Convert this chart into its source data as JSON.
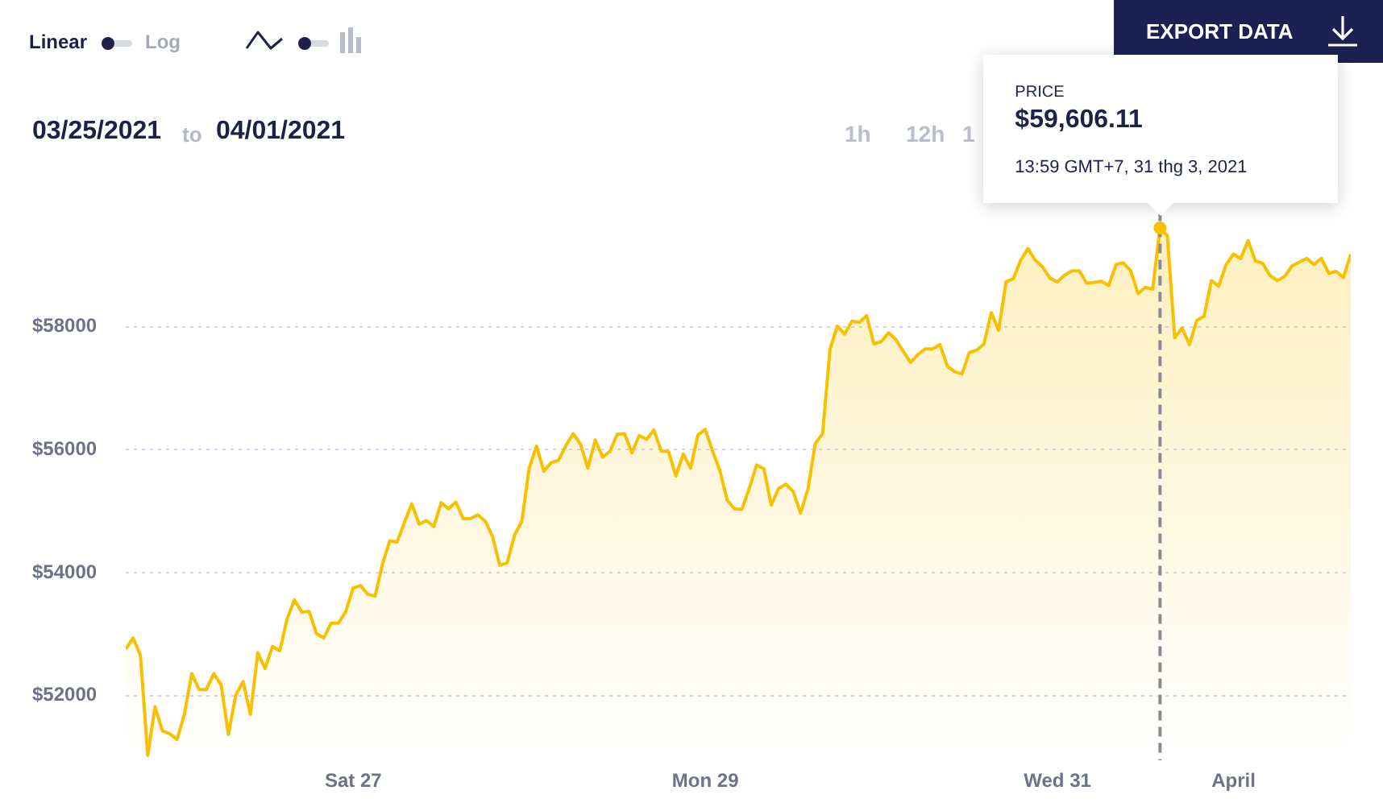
{
  "chart_data": {
    "type": "area",
    "x": [
      "2021-03-25T16:59",
      "2021-03-25T17:59",
      "2021-03-25T18:59",
      "2021-03-25T19:59",
      "2021-03-25T20:59",
      "2021-03-25T21:59",
      "2021-03-25T22:59",
      "2021-03-25T23:59",
      "2021-03-26T00:59",
      "2021-03-26T01:59",
      "2021-03-26T02:59",
      "2021-03-26T03:59",
      "2021-03-26T04:59",
      "2021-03-26T05:59",
      "2021-03-26T06:59",
      "2021-03-26T07:59",
      "2021-03-26T08:59",
      "2021-03-26T09:59",
      "2021-03-26T10:59",
      "2021-03-26T11:59",
      "2021-03-26T12:59",
      "2021-03-26T13:59",
      "2021-03-26T14:59",
      "2021-03-26T15:59",
      "2021-03-26T16:59",
      "2021-03-26T17:59",
      "2021-03-26T18:59",
      "2021-03-26T19:59",
      "2021-03-26T20:59",
      "2021-03-26T21:59",
      "2021-03-26T22:59",
      "2021-03-26T23:59",
      "2021-03-27T00:59",
      "2021-03-27T01:59",
      "2021-03-27T02:59",
      "2021-03-27T03:59",
      "2021-03-27T04:59",
      "2021-03-27T05:59",
      "2021-03-27T06:59",
      "2021-03-27T07:59",
      "2021-03-27T08:59",
      "2021-03-27T09:59",
      "2021-03-27T10:59",
      "2021-03-27T11:59",
      "2021-03-27T12:59",
      "2021-03-27T13:59",
      "2021-03-27T14:59",
      "2021-03-27T15:59",
      "2021-03-27T16:59",
      "2021-03-27T17:59",
      "2021-03-27T18:59",
      "2021-03-27T19:59",
      "2021-03-27T20:59",
      "2021-03-27T21:59",
      "2021-03-27T22:59",
      "2021-03-27T23:59",
      "2021-03-28T00:59",
      "2021-03-28T01:59",
      "2021-03-28T02:59",
      "2021-03-28T03:59",
      "2021-03-28T04:59",
      "2021-03-28T05:59",
      "2021-03-28T06:59",
      "2021-03-28T07:59",
      "2021-03-28T08:59",
      "2021-03-28T09:59",
      "2021-03-28T10:59",
      "2021-03-28T11:59",
      "2021-03-28T12:59",
      "2021-03-28T13:59",
      "2021-03-28T14:59",
      "2021-03-28T15:59",
      "2021-03-28T16:59",
      "2021-03-28T17:59",
      "2021-03-28T18:59",
      "2021-03-28T19:59",
      "2021-03-28T20:59",
      "2021-03-28T21:59",
      "2021-03-28T22:59",
      "2021-03-28T23:59",
      "2021-03-29T00:59",
      "2021-03-29T01:59",
      "2021-03-29T02:59",
      "2021-03-29T03:59",
      "2021-03-29T04:59",
      "2021-03-29T05:59",
      "2021-03-29T06:59",
      "2021-03-29T07:59",
      "2021-03-29T08:59",
      "2021-03-29T09:59",
      "2021-03-29T10:59",
      "2021-03-29T11:59",
      "2021-03-29T12:59",
      "2021-03-29T13:59",
      "2021-03-29T14:59",
      "2021-03-29T15:59",
      "2021-03-29T16:59",
      "2021-03-29T17:59",
      "2021-03-29T18:59",
      "2021-03-29T19:59",
      "2021-03-29T20:59",
      "2021-03-29T21:59",
      "2021-03-29T22:59",
      "2021-03-29T23:59",
      "2021-03-30T00:59",
      "2021-03-30T01:59",
      "2021-03-30T02:59",
      "2021-03-30T03:59",
      "2021-03-30T04:59",
      "2021-03-30T05:59",
      "2021-03-30T06:59",
      "2021-03-30T07:59",
      "2021-03-30T08:59",
      "2021-03-30T09:59",
      "2021-03-30T10:59",
      "2021-03-30T11:59",
      "2021-03-30T12:59",
      "2021-03-30T13:59",
      "2021-03-30T14:59",
      "2021-03-30T15:59",
      "2021-03-30T16:59",
      "2021-03-30T17:59",
      "2021-03-30T18:59",
      "2021-03-30T19:59",
      "2021-03-30T20:59",
      "2021-03-30T21:59",
      "2021-03-30T22:59",
      "2021-03-30T23:59",
      "2021-03-31T00:59",
      "2021-03-31T01:59",
      "2021-03-31T02:59",
      "2021-03-31T03:59",
      "2021-03-31T04:59",
      "2021-03-31T05:59",
      "2021-03-31T06:59",
      "2021-03-31T07:59",
      "2021-03-31T08:59",
      "2021-03-31T09:59",
      "2021-03-31T10:59",
      "2021-03-31T11:59",
      "2021-03-31T12:59",
      "2021-03-31T13:59",
      "2021-03-31T14:59",
      "2021-03-31T15:59",
      "2021-03-31T16:59",
      "2021-03-31T17:59",
      "2021-03-31T18:59",
      "2021-03-31T19:59",
      "2021-03-31T20:59",
      "2021-03-31T21:59",
      "2021-03-31T22:59",
      "2021-03-31T23:59",
      "2021-04-01T00:59",
      "2021-04-01T01:59",
      "2021-04-01T02:59",
      "2021-04-01T03:59",
      "2021-04-01T04:59",
      "2021-04-01T05:59",
      "2021-04-01T06:59",
      "2021-04-01T07:59",
      "2021-04-01T08:59",
      "2021-04-01T09:59",
      "2021-04-01T10:59",
      "2021-04-01T11:59",
      "2021-04-01T12:59",
      "2021-04-01T13:59",
      "2021-04-01T14:59",
      "2021-04-01T15:59"
    ],
    "values": [
      52760,
      52940,
      52660,
      51030,
      51820,
      51430,
      51380,
      51290,
      51700,
      52360,
      52100,
      52100,
      52360,
      52180,
      51370,
      52010,
      52230,
      51700,
      52700,
      52440,
      52800,
      52730,
      53250,
      53560,
      53360,
      53370,
      53010,
      52940,
      53180,
      53180,
      53370,
      53750,
      53790,
      53650,
      53620,
      54140,
      54520,
      54500,
      54820,
      55120,
      54790,
      54850,
      54750,
      55140,
      55040,
      55150,
      54880,
      54880,
      54940,
      54840,
      54590,
      54120,
      54160,
      54610,
      54840,
      55700,
      56060,
      55650,
      55790,
      55830,
      56070,
      56260,
      56090,
      55700,
      56160,
      55880,
      55970,
      56250,
      56260,
      55950,
      56230,
      56170,
      56320,
      55980,
      55970,
      55570,
      55930,
      55700,
      56240,
      56330,
      55980,
      55660,
      55180,
      55040,
      55030,
      55370,
      55750,
      55690,
      55100,
      55370,
      55440,
      55320,
      54970,
      55360,
      56100,
      56260,
      57630,
      58010,
      57880,
      58090,
      58070,
      58180,
      57720,
      57760,
      57900,
      57790,
      57600,
      57420,
      57550,
      57640,
      57640,
      57710,
      57360,
      57270,
      57230,
      57580,
      57620,
      57720,
      58230,
      57940,
      58730,
      58780,
      59080,
      59270,
      59080,
      58970,
      58790,
      58730,
      58840,
      58910,
      58910,
      58710,
      58720,
      58740,
      58670,
      59010,
      59040,
      58910,
      58540,
      58640,
      58610,
      59606.11,
      59480,
      57820,
      57980,
      57710,
      58100,
      58170,
      58750,
      58660,
      59010,
      59180,
      59110,
      59400,
      59070,
      59030,
      58830,
      58750,
      58820,
      58990,
      59050,
      59110,
      59010,
      59110,
      58870,
      58900,
      58800,
      59180
    ],
    "color": "#f7c100",
    "xlim": [
      "2021-03-25T16:59",
      "2021-04-01T15:59"
    ],
    "xticks": [
      {
        "value": "2021-03-27",
        "label": "Sat 27"
      },
      {
        "value": "2021-03-29",
        "label": "Mon 29"
      },
      {
        "value": "2021-03-31",
        "label": "Wed 31"
      },
      {
        "value": "2021-04-01",
        "label": "April"
      }
    ],
    "ylim": [
      50950,
      60400
    ],
    "yticks": [
      {
        "value": 52000,
        "label": "$52000"
      },
      {
        "value": 54000,
        "label": "$54000"
      },
      {
        "value": 56000,
        "label": "$56000"
      },
      {
        "value": 58000,
        "label": "$58000"
      }
    ],
    "grid": "y",
    "ref_lines": [
      {
        "axis": "x",
        "value": "2021-03-31T13:59",
        "color": "#8a8a92",
        "line_style": "dashed"
      }
    ],
    "annotations": [
      "Linear",
      "Log",
      "EXPORT DATA",
      "03/25/2021",
      "to",
      "04/01/2021",
      "1h",
      "12h",
      "1",
      "PRICE",
      "$59,606.11",
      "13:59 GMT+7, 31 thg 3, 2021"
    ]
  }
}
